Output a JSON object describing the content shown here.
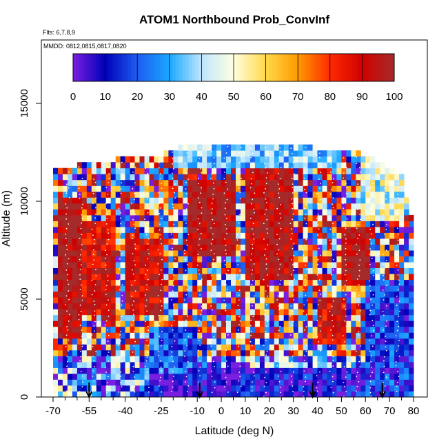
{
  "chart_data": {
    "type": "heatmap",
    "title": "ATOM1 Northbound Prob_ConvInf",
    "annotations": [
      "Flts: 6,7,8,9",
      "MMDD: 0812,0815,0817,0820"
    ],
    "xlabel": "Latitude (deg N)",
    "ylabel": "Altitude (m)",
    "xlim": [
      -70,
      80
    ],
    "ylim": [
      0,
      17500
    ],
    "x_tick_labels": [
      "-70",
      "-55",
      "-40",
      "-25",
      "-10",
      "0",
      "10",
      "20",
      "30",
      "40",
      "50",
      "60",
      "70",
      "80"
    ],
    "x_tick_values": [
      -70,
      -55,
      -40,
      -25,
      -10,
      0,
      10,
      20,
      30,
      40,
      50,
      60,
      70,
      80
    ],
    "x_minor_ticks": [
      -65,
      -60,
      -50,
      -45,
      -35,
      -30,
      -20,
      -15,
      -5,
      5,
      15,
      25,
      35,
      45,
      55,
      65,
      75
    ],
    "y_tick_labels": [
      "0",
      "5000",
      "10000",
      "15000"
    ],
    "y_tick_values": [
      0,
      5000,
      10000,
      15000
    ],
    "colorbar": {
      "range": [
        0,
        100
      ],
      "tick_labels": [
        "0",
        "10",
        "20",
        "30",
        "40",
        "50",
        "60",
        "70",
        "80",
        "90",
        "100"
      ],
      "tick_values": [
        0,
        10,
        20,
        30,
        40,
        50,
        60,
        70,
        80,
        90,
        100
      ],
      "colors": [
        "#7a1fe0",
        "#0000b8",
        "#1f5cf0",
        "#19a8ff",
        "#bfe6ff",
        "#ffffe0",
        "#ffd84a",
        "#ff9a00",
        "#ff2a00",
        "#d10000",
        "#a52a2a"
      ]
    },
    "flight_markers_lat": [
      -55,
      -9,
      38,
      67
    ],
    "column_top_altitudes": [
      {
        "lat": -68,
        "alt": 11500
      },
      {
        "lat": -55,
        "alt": 11800
      },
      {
        "lat": -45,
        "alt": 12000
      },
      {
        "lat": -35,
        "alt": 12200
      },
      {
        "lat": -25,
        "alt": 12300
      },
      {
        "lat": -15,
        "alt": 12800
      },
      {
        "lat": -5,
        "alt": 12900
      },
      {
        "lat": 5,
        "alt": 12900
      },
      {
        "lat": 15,
        "alt": 12900
      },
      {
        "lat": 25,
        "alt": 12900
      },
      {
        "lat": 35,
        "alt": 12900
      },
      {
        "lat": 45,
        "alt": 12400
      },
      {
        "lat": 55,
        "alt": 12400
      },
      {
        "lat": 65,
        "alt": 12000
      },
      {
        "lat": 75,
        "alt": 11200
      },
      {
        "lat": 80,
        "alt": 8500
      }
    ],
    "regions": [
      {
        "lat0": -68,
        "lat1": -58,
        "alt0": 3000,
        "alt1": 10000,
        "value": 98
      },
      {
        "lat0": -58,
        "lat1": -45,
        "alt0": 4000,
        "alt1": 9000,
        "value": 90
      },
      {
        "lat0": -40,
        "lat1": -25,
        "alt0": 4000,
        "alt1": 8000,
        "value": 92
      },
      {
        "lat0": -15,
        "lat1": 5,
        "alt0": 7000,
        "alt1": 11000,
        "value": 98
      },
      {
        "lat0": 10,
        "lat1": 30,
        "alt0": 6000,
        "alt1": 11500,
        "value": 96
      },
      {
        "lat0": 50,
        "lat1": 62,
        "alt0": 5500,
        "alt1": 8500,
        "value": 98
      },
      {
        "lat0": 40,
        "lat1": 52,
        "alt0": 2500,
        "alt1": 5000,
        "value": 90
      },
      {
        "lat0": -30,
        "lat1": 60,
        "alt0": 0,
        "alt1": 1500,
        "value": 8
      },
      {
        "lat0": 60,
        "lat1": 80,
        "alt0": 0,
        "alt1": 6000,
        "value": 15
      },
      {
        "lat0": -20,
        "lat1": 50,
        "alt0": 11500,
        "alt1": 13000,
        "value": 35
      },
      {
        "lat0": 58,
        "lat1": 75,
        "alt0": 9000,
        "alt1": 12500,
        "value": 45
      },
      {
        "lat0": -30,
        "lat1": -10,
        "alt0": 1000,
        "alt1": 3500,
        "value": 20
      }
    ]
  }
}
